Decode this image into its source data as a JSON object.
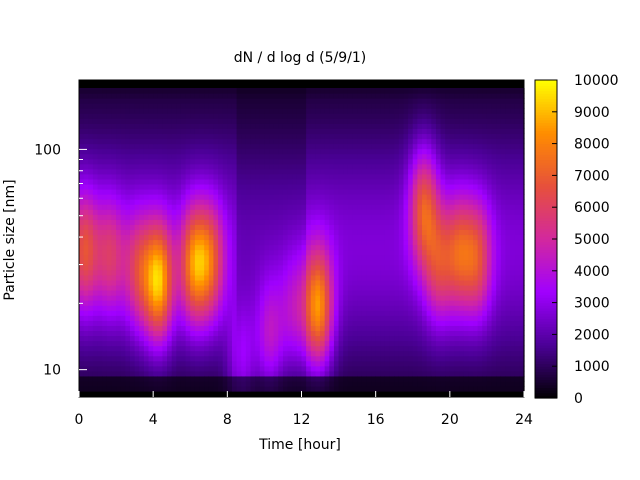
{
  "chart_data": {
    "type": "heatmap",
    "title": "dN / d log d (5/9/1)",
    "xlabel": "Time [hour]",
    "ylabel": "Particle size [nm]",
    "xlim": [
      0,
      24
    ],
    "ylim": [
      8,
      190
    ],
    "y_scale": "log",
    "x_ticks": [
      "0",
      "4",
      "8",
      "12",
      "16",
      "20",
      "24"
    ],
    "y_ticks": [
      "10",
      "100"
    ],
    "colorbar": {
      "min": 0,
      "max": 10000,
      "ticks": [
        "0",
        "1000",
        "2000",
        "3000",
        "4000",
        "5000",
        "6000",
        "7000",
        "8000",
        "9000",
        "10000"
      ],
      "palette": [
        "#000000",
        "#4b0096",
        "#a000ff",
        "#d2289e",
        "#e6503c",
        "#ff8c00",
        "#ffff00"
      ]
    },
    "blobs": [
      {
        "time": 0.3,
        "size": 35,
        "peak": 6000
      },
      {
        "time": 1.7,
        "size": 33,
        "peak": 5000
      },
      {
        "time": 3.2,
        "size": 28,
        "peak": 5300
      },
      {
        "time": 4.3,
        "size": 25,
        "peak": 8600
      },
      {
        "time": 6.2,
        "size": 30,
        "peak": 7200
      },
      {
        "time": 7.1,
        "size": 31,
        "peak": 6000
      },
      {
        "time": 8.8,
        "size": 11,
        "peak": 4200
      },
      {
        "time": 10.3,
        "size": 14,
        "peak": 4800
      },
      {
        "time": 11.6,
        "size": 18,
        "peak": 4300
      },
      {
        "time": 12.9,
        "size": 19,
        "peak": 8200
      },
      {
        "time": 18.6,
        "size": 55,
        "peak": 6500
      },
      {
        "time": 19.4,
        "size": 30,
        "peak": 5200
      },
      {
        "time": 20.5,
        "size": 34,
        "peak": 5800
      },
      {
        "time": 21.5,
        "size": 32,
        "peak": 5700
      }
    ]
  }
}
